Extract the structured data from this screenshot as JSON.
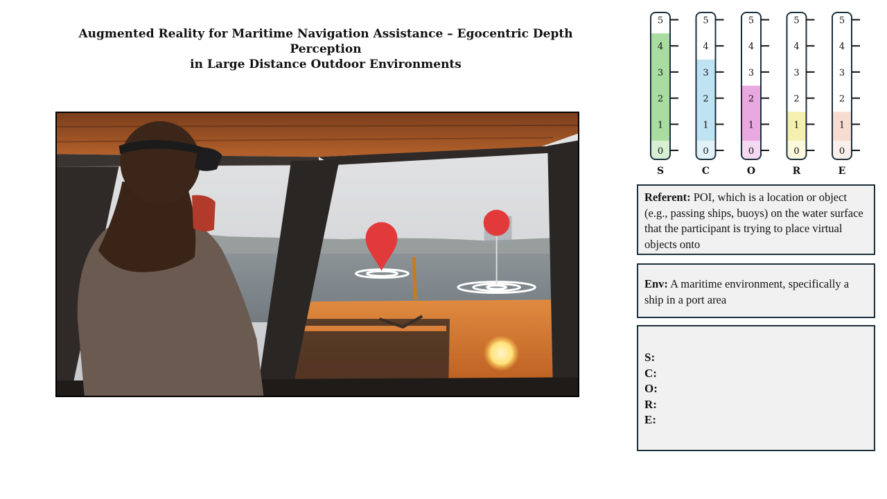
{
  "title": {
    "line1": "Augmented Reality for Maritime Navigation Assistance – Egocentric Depth Perception",
    "line2": "in Large Distance Outdoor Environments"
  },
  "scales": {
    "tick_labels": [
      "0",
      "1",
      "2",
      "3",
      "4",
      "5"
    ],
    "columns": [
      {
        "letter": "S",
        "level": 4,
        "color": "#a8dca0"
      },
      {
        "letter": "C",
        "level": 3,
        "color": "#bfe3f2"
      },
      {
        "letter": "O",
        "level": 2,
        "color": "#e9a9e0"
      },
      {
        "letter": "R",
        "level": 1,
        "color": "#f5f0b0"
      },
      {
        "letter": "E",
        "level": 1,
        "color": "#f7dcd2"
      }
    ]
  },
  "referent": {
    "label": "Referent:",
    "text": "POI, which is a location or object (e.g., passing ships, buoys) on the water surface that the participant is trying to place virtual objects onto"
  },
  "env": {
    "label": "Env:",
    "text": "A maritime environment, specifically a ship in a port area"
  },
  "score_box": {
    "lines": [
      "S:",
      "C:",
      "O:",
      "R:",
      "E:"
    ]
  },
  "colors": {
    "box_border": "#1c2f3c",
    "box_fill": "#f1f1f1",
    "pin_red": "#e23a3a",
    "deck_orange": "#d8722c"
  }
}
